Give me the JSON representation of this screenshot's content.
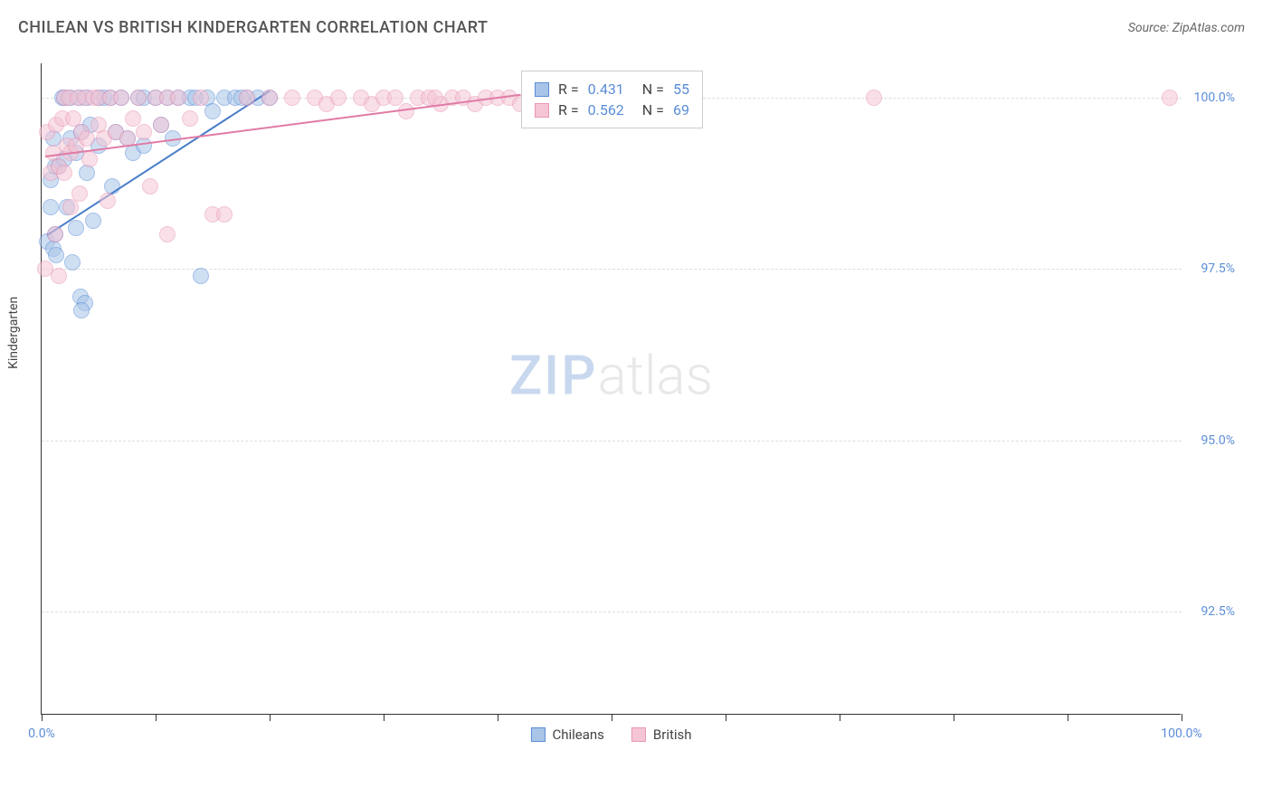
{
  "title": "CHILEAN VS BRITISH KINDERGARTEN CORRELATION CHART",
  "source": "Source: ZipAtlas.com",
  "watermark_zip": "ZIP",
  "watermark_atlas": "atlas",
  "chart": {
    "type": "scatter",
    "xlim": [
      0,
      100
    ],
    "ylim": [
      91,
      100.5
    ],
    "x_tick_positions": [
      0,
      10,
      20,
      30,
      40,
      50,
      60,
      70,
      80,
      90,
      100
    ],
    "x_tick_labels": {
      "0": "0.0%",
      "100": "100.0%"
    },
    "y_ticks": [
      92.5,
      95.0,
      97.5,
      100.0
    ],
    "y_tick_labels": [
      "92.5%",
      "95.0%",
      "97.5%",
      "100.0%"
    ],
    "y_axis_label": "Kindergarten",
    "background_color": "#ffffff",
    "grid_color": "#dddddd",
    "axis_color": "#333333",
    "tick_label_color": "#5b8dd6",
    "point_radius": 9,
    "point_opacity": 0.55,
    "series": [
      {
        "name": "Chileans",
        "color_fill": "#a8c5e8",
        "color_stroke": "#5b8dd6",
        "points": [
          [
            0.5,
            97.9
          ],
          [
            0.8,
            98.8
          ],
          [
            0.8,
            98.4
          ],
          [
            1.0,
            99.4
          ],
          [
            1.0,
            97.8
          ],
          [
            1.2,
            99.0
          ],
          [
            1.2,
            98.0
          ],
          [
            1.3,
            97.7
          ],
          [
            1.5,
            99.0
          ],
          [
            1.8,
            100.0
          ],
          [
            2.0,
            99.1
          ],
          [
            2.0,
            100.0
          ],
          [
            2.2,
            98.4
          ],
          [
            2.5,
            99.4
          ],
          [
            2.5,
            100.0
          ],
          [
            2.7,
            97.6
          ],
          [
            3.0,
            99.2
          ],
          [
            3.0,
            98.1
          ],
          [
            3.3,
            100.0
          ],
          [
            3.4,
            97.1
          ],
          [
            3.5,
            99.5
          ],
          [
            3.8,
            97.0
          ],
          [
            4.0,
            98.9
          ],
          [
            4.0,
            100.0
          ],
          [
            4.3,
            99.6
          ],
          [
            4.5,
            98.2
          ],
          [
            5.0,
            100.0
          ],
          [
            5.0,
            99.3
          ],
          [
            5.5,
            100.0
          ],
          [
            6.0,
            100.0
          ],
          [
            6.2,
            98.7
          ],
          [
            6.5,
            99.5
          ],
          [
            7.0,
            100.0
          ],
          [
            7.5,
            99.4
          ],
          [
            8.0,
            99.2
          ],
          [
            8.5,
            100.0
          ],
          [
            9.0,
            100.0
          ],
          [
            9.0,
            99.3
          ],
          [
            10.0,
            100.0
          ],
          [
            10.5,
            99.6
          ],
          [
            11.0,
            100.0
          ],
          [
            11.5,
            99.4
          ],
          [
            12.0,
            100.0
          ],
          [
            13.0,
            100.0
          ],
          [
            13.5,
            100.0
          ],
          [
            14.5,
            100.0
          ],
          [
            15.0,
            99.8
          ],
          [
            16.0,
            100.0
          ],
          [
            14.0,
            97.4
          ],
          [
            3.5,
            96.9
          ],
          [
            17.0,
            100.0
          ],
          [
            18.0,
            100.0
          ],
          [
            19.0,
            100.0
          ],
          [
            20.0,
            100.0
          ],
          [
            17.5,
            100.0
          ]
        ],
        "trend": {
          "x1": 0.5,
          "y1": 98.0,
          "x2": 20.0,
          "y2": 100.1,
          "color": "#4a7ec9"
        }
      },
      {
        "name": "British",
        "color_fill": "#f5c5d5",
        "color_stroke": "#e896b5",
        "points": [
          [
            0.3,
            97.5
          ],
          [
            0.5,
            99.5
          ],
          [
            0.8,
            98.9
          ],
          [
            1.0,
            99.2
          ],
          [
            1.2,
            98.0
          ],
          [
            1.3,
            99.6
          ],
          [
            1.5,
            99.0
          ],
          [
            1.5,
            97.4
          ],
          [
            1.8,
            99.7
          ],
          [
            2.0,
            98.9
          ],
          [
            2.0,
            100.0
          ],
          [
            2.2,
            99.3
          ],
          [
            2.4,
            100.0
          ],
          [
            2.5,
            98.4
          ],
          [
            2.5,
            99.2
          ],
          [
            2.8,
            99.7
          ],
          [
            3.0,
            99.3
          ],
          [
            3.2,
            100.0
          ],
          [
            3.3,
            98.6
          ],
          [
            3.5,
            99.5
          ],
          [
            3.8,
            100.0
          ],
          [
            4.0,
            99.4
          ],
          [
            4.2,
            99.1
          ],
          [
            4.5,
            100.0
          ],
          [
            5.0,
            99.6
          ],
          [
            5.0,
            100.0
          ],
          [
            5.5,
            99.4
          ],
          [
            5.8,
            98.5
          ],
          [
            6.0,
            100.0
          ],
          [
            6.5,
            99.5
          ],
          [
            7.0,
            100.0
          ],
          [
            7.5,
            99.4
          ],
          [
            8.0,
            99.7
          ],
          [
            8.5,
            100.0
          ],
          [
            9.0,
            99.5
          ],
          [
            9.5,
            98.7
          ],
          [
            10.0,
            100.0
          ],
          [
            10.5,
            99.6
          ],
          [
            11.0,
            100.0
          ],
          [
            11.0,
            98.0
          ],
          [
            12.0,
            100.0
          ],
          [
            13.0,
            99.7
          ],
          [
            14.0,
            100.0
          ],
          [
            15.0,
            98.3
          ],
          [
            16.0,
            98.3
          ],
          [
            18.0,
            100.0
          ],
          [
            20.0,
            100.0
          ],
          [
            22.0,
            100.0
          ],
          [
            24.0,
            100.0
          ],
          [
            25.0,
            99.9
          ],
          [
            26.0,
            100.0
          ],
          [
            28.0,
            100.0
          ],
          [
            29.0,
            99.9
          ],
          [
            30.0,
            100.0
          ],
          [
            31.0,
            100.0
          ],
          [
            32.0,
            99.8
          ],
          [
            33.0,
            100.0
          ],
          [
            34.0,
            100.0
          ],
          [
            35.0,
            99.9
          ],
          [
            36.0,
            100.0
          ],
          [
            37.0,
            100.0
          ],
          [
            38.0,
            99.9
          ],
          [
            39.0,
            100.0
          ],
          [
            40.0,
            100.0
          ],
          [
            41.0,
            100.0
          ],
          [
            42.0,
            99.9
          ],
          [
            73.0,
            100.0
          ],
          [
            34.5,
            100.0
          ],
          [
            99.0,
            100.0
          ]
        ],
        "trend": {
          "x1": 0.3,
          "y1": 99.15,
          "x2": 42.0,
          "y2": 100.05,
          "color": "#e07ba5"
        }
      }
    ],
    "stats_box": {
      "rows": [
        {
          "swatch_fill": "#a8c5e8",
          "swatch_stroke": "#5b8dd6",
          "r_label": "R =",
          "r_value": "0.431",
          "n_label": "N =",
          "n_value": "55"
        },
        {
          "swatch_fill": "#f5c5d5",
          "swatch_stroke": "#e896b5",
          "r_label": "R =",
          "r_value": "0.562",
          "n_label": "N =",
          "n_value": "69"
        }
      ]
    },
    "legend": [
      {
        "label": "Chileans",
        "fill": "#a8c5e8",
        "stroke": "#5b8dd6"
      },
      {
        "label": "British",
        "fill": "#f5c5d5",
        "stroke": "#e896b5"
      }
    ]
  }
}
